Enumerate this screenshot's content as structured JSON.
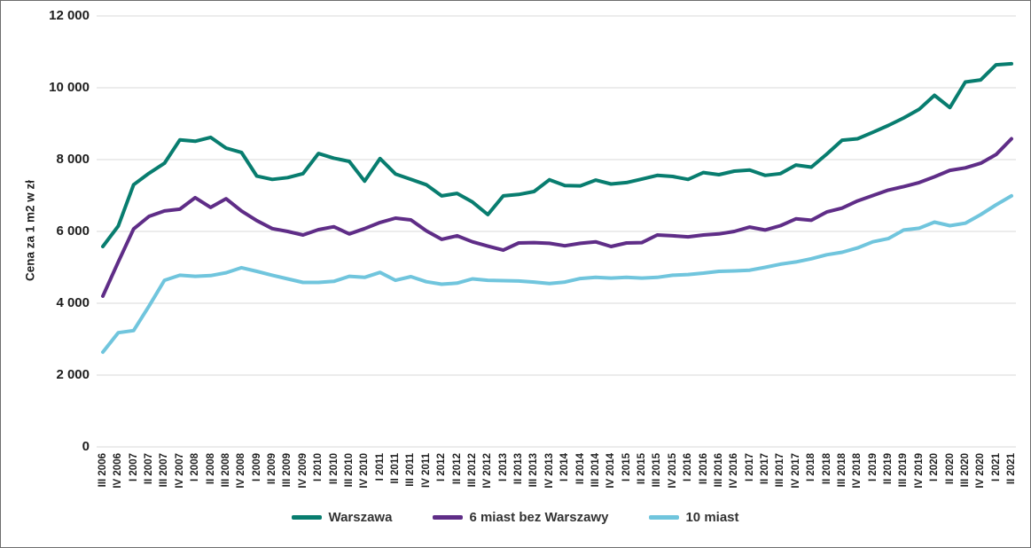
{
  "colors": {
    "gridline": "#d9d9d9",
    "tick_text": "#1f1f1f",
    "legend_text": "#333333",
    "border": "#6e6e6e",
    "background": "#ffffff"
  },
  "chart_data": {
    "type": "line",
    "title": "",
    "xlabel": "",
    "ylabel": "Cena za 1 m2 w zł",
    "ylim": [
      0,
      12000
    ],
    "ytick_step": 2000,
    "ytick_labels": [
      "0",
      "2 000",
      "4 000",
      "6 000",
      "8 000",
      "10 000",
      "12 000"
    ],
    "grid": "horizontal",
    "legend_position": "bottom",
    "categories": [
      "III 2006",
      "IV 2006",
      "I 2007",
      "II 2007",
      "III 2007",
      "IV 2007",
      "I 2008",
      "II 2008",
      "III 2008",
      "IV 2008",
      "I 2009",
      "II 2009",
      "III 2009",
      "IV 2009",
      "I 2010",
      "II 2010",
      "III 2010",
      "IV 2010",
      "I 2011",
      "II 2011",
      "III 2011",
      "IV 2011",
      "I 2012",
      "II 2012",
      "III 2012",
      "IV 2012",
      "I 2013",
      "II 2013",
      "III 2013",
      "IV 2013",
      "I 2014",
      "II 2014",
      "III 2014",
      "IV 2014",
      "I 2015",
      "II 2015",
      "III 2015",
      "IV 2015",
      "I 2016",
      "II 2016",
      "III 2016",
      "IV 2016",
      "I 2017",
      "II 2017",
      "III 2017",
      "IV 2017",
      "I 2018",
      "II 2018",
      "III 2018",
      "IV 2018",
      "I 2019",
      "II 2019",
      "III 2019",
      "IV 2019",
      "I 2020",
      "II 2020",
      "III 2020",
      "IV 2020",
      "I 2021",
      "II 2021"
    ],
    "series": [
      {
        "name": "Warszawa",
        "color": "#087d6f",
        "values": [
          5580,
          6150,
          7300,
          7620,
          7900,
          8550,
          8510,
          8620,
          8320,
          8200,
          7540,
          7450,
          7500,
          7610,
          8170,
          8040,
          7950,
          7400,
          8030,
          7600,
          7450,
          7300,
          6990,
          7060,
          6820,
          6470,
          6990,
          7030,
          7110,
          7440,
          7280,
          7270,
          7430,
          7320,
          7360,
          7460,
          7560,
          7530,
          7450,
          7640,
          7580,
          7680,
          7710,
          7560,
          7610,
          7850,
          7790,
          8150,
          8540,
          8580,
          8760,
          8950,
          9160,
          9400,
          9790,
          9450,
          10160,
          10220,
          10640,
          10670
        ]
      },
      {
        "name": "6 miast bez Warszawy",
        "color": "#5f2d87",
        "values": [
          4200,
          5150,
          6070,
          6420,
          6570,
          6620,
          6940,
          6670,
          6910,
          6570,
          6300,
          6080,
          6000,
          5900,
          6050,
          6130,
          5930,
          6080,
          6250,
          6370,
          6320,
          6020,
          5780,
          5880,
          5710,
          5590,
          5480,
          5680,
          5690,
          5670,
          5600,
          5670,
          5710,
          5580,
          5680,
          5690,
          5900,
          5880,
          5850,
          5900,
          5930,
          6000,
          6120,
          6040,
          6160,
          6350,
          6310,
          6540,
          6650,
          6850,
          7000,
          7150,
          7250,
          7360,
          7520,
          7700,
          7770,
          7900,
          8140,
          8580
        ]
      },
      {
        "name": "10 miast",
        "color": "#70c5dd",
        "values": [
          2640,
          3180,
          3240,
          3920,
          4640,
          4780,
          4750,
          4770,
          4850,
          4990,
          4890,
          4780,
          4680,
          4580,
          4580,
          4610,
          4750,
          4720,
          4860,
          4640,
          4740,
          4600,
          4530,
          4560,
          4680,
          4640,
          4630,
          4620,
          4590,
          4550,
          4590,
          4690,
          4720,
          4700,
          4720,
          4700,
          4720,
          4780,
          4800,
          4840,
          4890,
          4900,
          4920,
          5000,
          5090,
          5150,
          5240,
          5350,
          5420,
          5540,
          5710,
          5800,
          6040,
          6090,
          6260,
          6160,
          6230,
          6470,
          6740,
          6990
        ]
      }
    ]
  }
}
